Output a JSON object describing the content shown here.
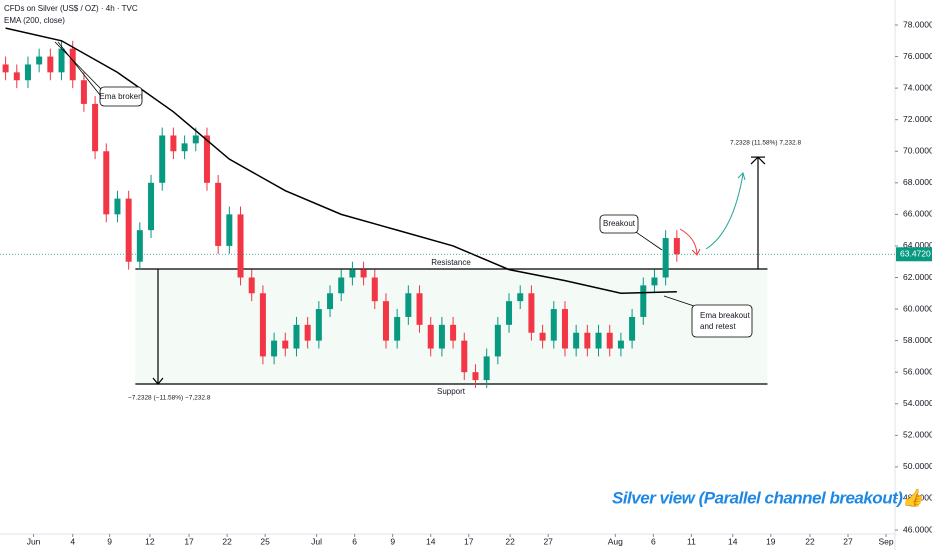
{
  "chart_data": {
    "type": "candlestick",
    "title": "CFDs on Silver (US$ / OZ) · 4h · TVC",
    "up_color": "#089981",
    "down_color": "#f23645",
    "open": [
      75.5,
      75,
      74.5,
      75.5,
      76,
      75,
      76.5,
      74.5,
      73,
      70,
      66,
      67,
      63,
      65,
      68,
      71,
      70,
      70.5,
      71,
      68,
      64,
      66,
      62,
      61,
      57,
      58,
      57.5,
      59,
      58,
      60,
      61,
      62,
      62.5,
      62,
      60.5,
      58,
      59.5,
      61,
      59,
      57.5,
      59,
      58,
      56,
      55.5,
      57,
      59,
      60.5,
      61,
      58.5,
      58,
      60,
      57.5,
      58.5,
      57.5,
      58.5,
      57.5,
      58,
      59.5,
      61.5,
      62,
      64.5
    ],
    "high": [
      76,
      75.5,
      76,
      76.5,
      76.5,
      77,
      77,
      75,
      73.5,
      70.5,
      67.5,
      67.5,
      65.5,
      68.5,
      71.5,
      71.5,
      71,
      71.5,
      71.5,
      68.5,
      66.5,
      66.5,
      62.5,
      61.5,
      58.5,
      58.5,
      59.5,
      59.5,
      60.5,
      61.5,
      62.5,
      63,
      63,
      62.5,
      61,
      60,
      61.5,
      61.5,
      59.5,
      59.5,
      59.5,
      58.5,
      56.5,
      57.5,
      59.5,
      61,
      61.5,
      61.5,
      59,
      60.5,
      60.5,
      59,
      59,
      59,
      59,
      58.5,
      60,
      62,
      62.5,
      65,
      65
    ],
    "low": [
      74.5,
      74,
      74,
      75,
      74.5,
      74.5,
      74,
      72.5,
      69.5,
      65.5,
      65.5,
      62.5,
      62.5,
      64.5,
      67.5,
      69.5,
      69.5,
      70,
      67.5,
      63.5,
      63.5,
      61.5,
      60.5,
      56.5,
      56.5,
      57,
      57,
      57.5,
      57.5,
      59.5,
      60.5,
      61.5,
      61.5,
      60,
      57.5,
      57.5,
      59,
      58.5,
      57,
      57,
      57.5,
      55.5,
      55,
      55,
      56.5,
      58.5,
      60,
      58,
      57.5,
      57.5,
      57,
      57,
      57,
      57,
      57,
      57,
      57.5,
      59,
      61,
      61.5,
      63
    ],
    "close": [
      75,
      74.5,
      75.5,
      76,
      75,
      76.5,
      74.5,
      73,
      70,
      66,
      67,
      63,
      65,
      68,
      71,
      70,
      70.5,
      71,
      68,
      64,
      66,
      62,
      61,
      57,
      58,
      57.5,
      59,
      58,
      60,
      61,
      62,
      62.5,
      62,
      60.5,
      58,
      59.5,
      61,
      59,
      57.5,
      59,
      58,
      56,
      55.5,
      57,
      59,
      60.5,
      61,
      58.5,
      58,
      60,
      57.5,
      58.5,
      57.5,
      58.5,
      57.5,
      58,
      59.5,
      61.5,
      62,
      64.5,
      63.472
    ],
    "last_price": {
      "value": 63.472,
      "label": "63.4720"
    },
    "ema": {
      "name": "EMA (200, close)",
      "color": "#000000",
      "x": [
        0,
        5,
        10,
        15,
        20,
        25,
        30,
        35,
        40,
        45,
        50,
        55,
        60
      ],
      "values": [
        77.8,
        77,
        75,
        72.5,
        69.5,
        67.5,
        66,
        65,
        64,
        62.5,
        61.8,
        61,
        61.1
      ]
    },
    "xlim": [
      -0.5,
      79.5
    ],
    "ylim": [
      46,
      78
    ],
    "xticks": [
      {
        "value": 2.5,
        "label": "Jun"
      },
      {
        "value": 6,
        "label": "4"
      },
      {
        "value": 9.3,
        "label": "9"
      },
      {
        "value": 12.9,
        "label": "12"
      },
      {
        "value": 16.4,
        "label": "17"
      },
      {
        "value": 19.8,
        "label": "22"
      },
      {
        "value": 23.2,
        "label": "25"
      },
      {
        "value": 27.8,
        "label": "Jul"
      },
      {
        "value": 31.2,
        "label": "6"
      },
      {
        "value": 34.6,
        "label": "9"
      },
      {
        "value": 38,
        "label": "14"
      },
      {
        "value": 41.4,
        "label": "17"
      },
      {
        "value": 45.1,
        "label": "22"
      },
      {
        "value": 48.5,
        "label": "27"
      },
      {
        "value": 54.5,
        "label": "Aug"
      },
      {
        "value": 57.9,
        "label": "6"
      },
      {
        "value": 61.3,
        "label": "11"
      },
      {
        "value": 65,
        "label": "14"
      },
      {
        "value": 68.4,
        "label": "19"
      },
      {
        "value": 71.9,
        "label": "22"
      },
      {
        "value": 75.3,
        "label": "27"
      },
      {
        "value": 78.7,
        "label": "Sep"
      }
    ],
    "yticks": [
      {
        "value": 46,
        "label": "46.0000"
      },
      {
        "value": 48,
        "label": "48.0000"
      },
      {
        "value": 50,
        "label": "50.0000"
      },
      {
        "value": 52,
        "label": "52.0000"
      },
      {
        "value": 54,
        "label": "54.0000"
      },
      {
        "value": 56,
        "label": "56.0000"
      },
      {
        "value": 58,
        "label": "58.0000"
      },
      {
        "value": 60,
        "label": "60.0000"
      },
      {
        "value": 62,
        "label": "62.0000"
      },
      {
        "value": 64,
        "label": "64.0000"
      },
      {
        "value": 66,
        "label": "66.0000"
      },
      {
        "value": 68,
        "label": "68.0000"
      },
      {
        "value": 70,
        "label": "70.0000"
      },
      {
        "value": 72,
        "label": "72.0000"
      },
      {
        "value": 74,
        "label": "74.0000"
      },
      {
        "value": 76,
        "label": "76.0000"
      },
      {
        "value": 78,
        "label": "78.0000"
      }
    ],
    "resistance": {
      "label": "Resistance",
      "value": 62.54
    },
    "support": {
      "label": "Support",
      "value": 55.25
    },
    "channel_x": [
      11.6,
      68.1
    ],
    "target": {
      "value": 69.63,
      "label": "7.2328 (11.58%) 7,232.8"
    },
    "channel_height_label": "−7.2328 (−11.58%) −7,232.8",
    "annotations": {
      "ema_broken": "Ema broken",
      "breakout": "Breakout",
      "ema_retest": [
        "Ema breakout",
        "and retest"
      ]
    },
    "caption": "Silver view (Parallel channel breakout)👍"
  }
}
